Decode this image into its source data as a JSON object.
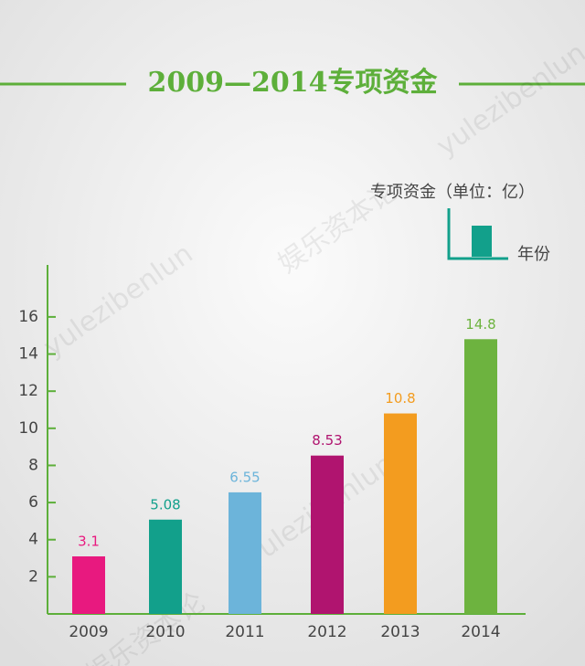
{
  "chart_data": {
    "type": "bar",
    "title": "2009—2014专项资金",
    "ylabel": "专项资金（单位：亿）",
    "xlabel": "年份",
    "categories": [
      "2009",
      "2010",
      "2011",
      "2012",
      "2013",
      "2014"
    ],
    "values": [
      3.1,
      5.08,
      6.55,
      8.53,
      10.8,
      14.8
    ],
    "colors": [
      "#e8197f",
      "#12a08b",
      "#6cb4da",
      "#b0146f",
      "#f39c1f",
      "#6db33f"
    ],
    "ylim": [
      0,
      18.8
    ],
    "yticks": [
      2,
      4,
      6,
      8,
      10,
      12,
      14,
      16
    ],
    "axis_color": "#5daf3a",
    "watermarks": [
      "娱乐资本论",
      "yulezibenlun"
    ]
  }
}
